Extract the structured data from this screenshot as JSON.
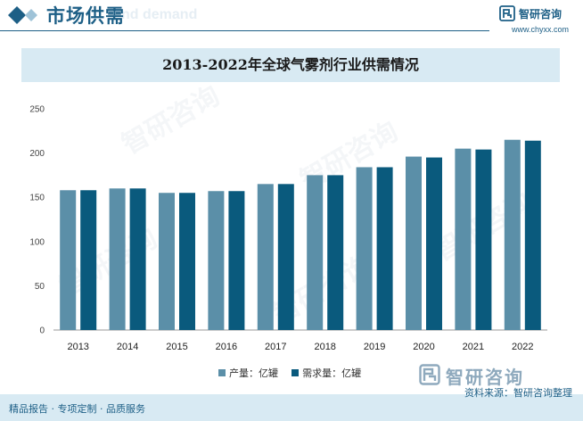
{
  "header": {
    "title": "市场供需",
    "ghost_text": "nd demand",
    "logo_text": "智研咨询",
    "website": "www.chyxx.com"
  },
  "watermark": {
    "text": "智研咨询"
  },
  "chart_data": {
    "type": "bar",
    "title": "2013-2022年全球气雾剂行业供需情况",
    "categories": [
      "2013",
      "2014",
      "2015",
      "2016",
      "2017",
      "2018",
      "2019",
      "2020",
      "2021",
      "2022"
    ],
    "series": [
      {
        "name": "产量：亿罐",
        "color": "#5b8fa8",
        "values": [
          158,
          160,
          155,
          157,
          165,
          175,
          184,
          196,
          205,
          215
        ]
      },
      {
        "name": "需求量：亿罐",
        "color": "#0a5a7d",
        "values": [
          158,
          160,
          155,
          157,
          165,
          175,
          184,
          195,
          204,
          214
        ]
      }
    ],
    "y_ticks": [
      "0",
      "50",
      "100",
      "150",
      "200",
      "250"
    ],
    "ylim": [
      0,
      250
    ],
    "xlabel": "",
    "ylabel": "",
    "grid": false,
    "legend_position": "bottom"
  },
  "footer": {
    "left": "精品报告 · 专项定制 · 品质服务",
    "source": "资料来源：智研咨询整理",
    "logo_text": "智研咨询"
  },
  "colors": {
    "brand": "#1d5f86",
    "band": "#d8eaf3"
  }
}
